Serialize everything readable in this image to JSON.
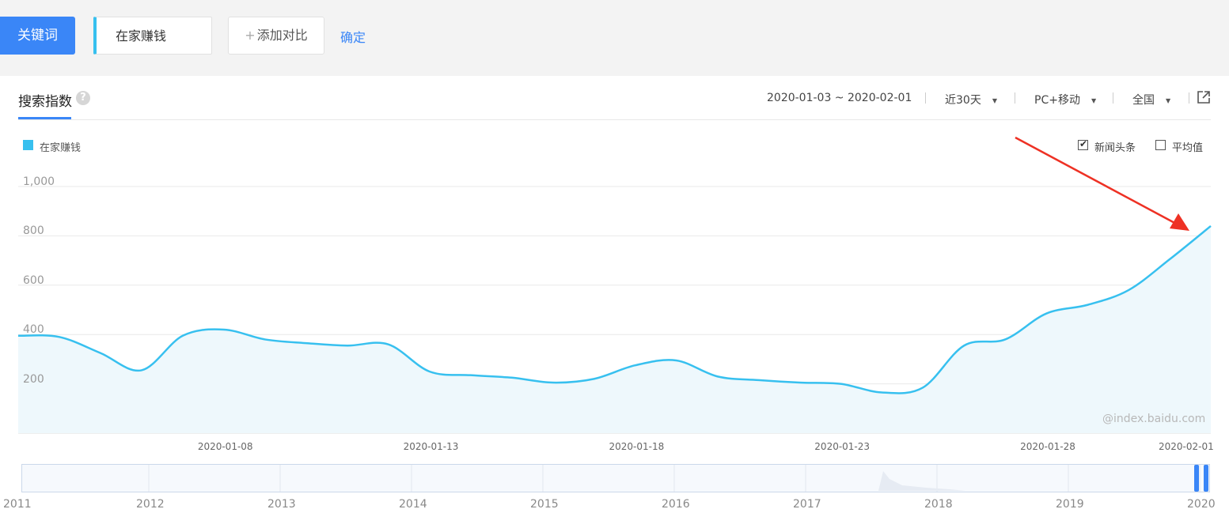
{
  "header": {
    "keyword_button": "关键词",
    "keyword_value": "在家赚钱",
    "add_compare": "添加对比",
    "add_compare_plus": "+",
    "confirm": "确定"
  },
  "tab": {
    "label": "搜索指数",
    "help": "?"
  },
  "filters": {
    "date_range": "2020-01-03 ~ 2020-02-01",
    "period": "近30天",
    "device": "PC+移动",
    "region": "全国"
  },
  "legend": {
    "series_name": "在家赚钱"
  },
  "options": {
    "news_label": "新闻头条",
    "news_checked": true,
    "avg_label": "平均值",
    "avg_checked": false
  },
  "watermark": "@index.baidu.com",
  "colors": {
    "accent": "#3a86f7",
    "series": "#37c0ef",
    "arrow": "#ee3124"
  },
  "chart_data": {
    "type": "area",
    "ylim": [
      0,
      1000
    ],
    "yticks": [
      "1,000",
      "800",
      "600",
      "400",
      "200"
    ],
    "ytick_values": [
      1000,
      800,
      600,
      400,
      200
    ],
    "xtick_labels": [
      "2020-01-08",
      "2020-01-13",
      "2020-01-18",
      "2020-01-23",
      "2020-01-28",
      "2020-02-01"
    ],
    "x": [
      "2020-01-03",
      "2020-01-04",
      "2020-01-05",
      "2020-01-06",
      "2020-01-07",
      "2020-01-08",
      "2020-01-09",
      "2020-01-10",
      "2020-01-11",
      "2020-01-12",
      "2020-01-13",
      "2020-01-14",
      "2020-01-15",
      "2020-01-16",
      "2020-01-17",
      "2020-01-18",
      "2020-01-19",
      "2020-01-20",
      "2020-01-21",
      "2020-01-22",
      "2020-01-23",
      "2020-01-24",
      "2020-01-25",
      "2020-01-26",
      "2020-01-27",
      "2020-01-28",
      "2020-01-29",
      "2020-01-30",
      "2020-01-31",
      "2020-02-01"
    ],
    "series": [
      {
        "name": "在家赚钱",
        "values": [
          395,
          390,
          325,
          255,
          395,
          420,
          380,
          365,
          355,
          360,
          250,
          235,
          225,
          205,
          220,
          275,
          295,
          230,
          215,
          205,
          200,
          165,
          185,
          355,
          380,
          485,
          520,
          580,
          705,
          840
        ]
      }
    ],
    "grid": true,
    "legend_position": "top-left",
    "navigator_years": [
      "2011",
      "2012",
      "2013",
      "2014",
      "2015",
      "2016",
      "2017",
      "2018",
      "2019",
      "2020"
    ]
  }
}
